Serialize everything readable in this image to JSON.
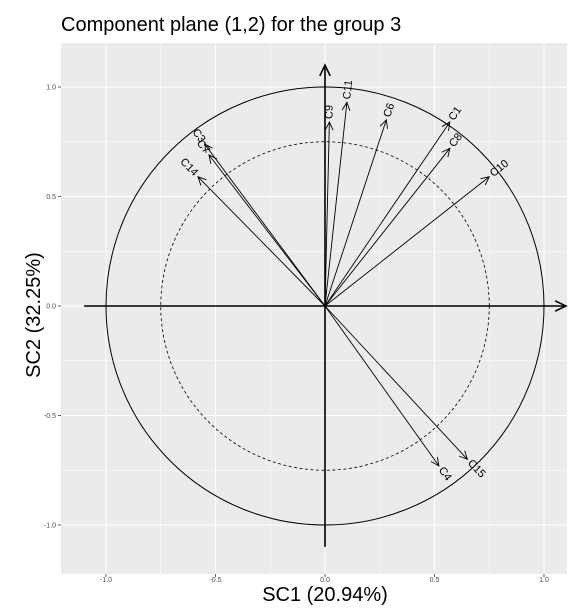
{
  "chart_data": {
    "type": "scatter",
    "subtype": "correlation-circle",
    "title": "Component plane (1,2) for the group 3",
    "xlabel": "SC1 (20.94%)",
    "ylabel": "SC2 (32.25%)",
    "xlim": [
      -1.1,
      1.1
    ],
    "ylim": [
      -1.1,
      1.1
    ],
    "x_ticks": [
      -1.0,
      -0.5,
      0.0,
      0.5,
      1.0
    ],
    "x_tick_labels": [
      "-1.0",
      "-0.5",
      "0.0",
      "0.5",
      "1.0"
    ],
    "y_ticks": [
      -1.0,
      -0.5,
      0.0,
      0.5,
      1.0
    ],
    "y_tick_labels": [
      "-1.0",
      "-0.5",
      "0.0",
      "0.5",
      "1.0"
    ],
    "grid": true,
    "unit_circle_radius": 1.0,
    "inner_circle_radius": 0.75,
    "background": "#ebebeb",
    "gridline_color": "#ffffff",
    "vectors": [
      {
        "label": "C11",
        "x": 0.1,
        "y": 0.93
      },
      {
        "label": "C9",
        "x": 0.02,
        "y": 0.84
      },
      {
        "label": "C6",
        "x": 0.28,
        "y": 0.85
      },
      {
        "label": "C1",
        "x": 0.57,
        "y": 0.84
      },
      {
        "label": "C8",
        "x": 0.57,
        "y": 0.72
      },
      {
        "label": "C10",
        "x": 0.75,
        "y": 0.59
      },
      {
        "label": "C3",
        "x": -0.55,
        "y": 0.74
      },
      {
        "label": "C7",
        "x": -0.53,
        "y": 0.69
      },
      {
        "label": "C14",
        "x": -0.58,
        "y": 0.59
      },
      {
        "label": "C4",
        "x": 0.52,
        "y": -0.73
      },
      {
        "label": "C15",
        "x": 0.65,
        "y": -0.7
      }
    ]
  }
}
